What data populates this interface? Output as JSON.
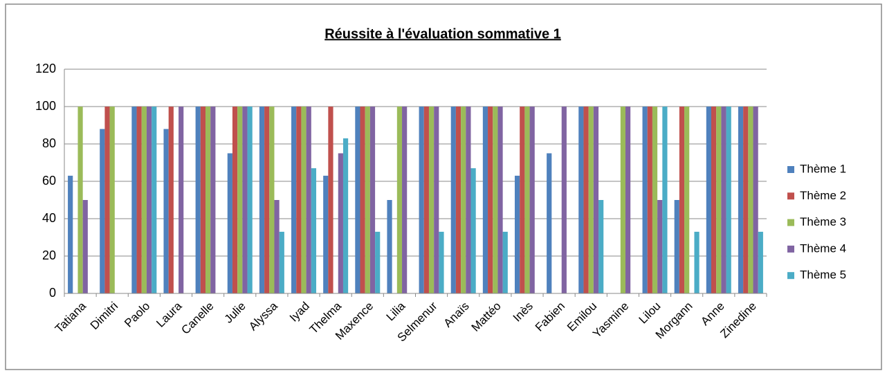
{
  "chart_data": {
    "type": "bar",
    "title": "Réussite à l'évaluation sommative 1",
    "categories": [
      "Tatiana",
      "Dimitri",
      "Paolo",
      "Laura",
      "Canelle",
      "Julie",
      "Alyssa",
      "Iyad",
      "Thelma",
      "Maxence",
      "Lilia",
      "Selmenur",
      "Anaïs",
      "Mattéo",
      "Inès",
      "Fabien",
      "Emilou",
      "Yasmine",
      "Lilou",
      "Morgann",
      "Anne",
      "Zinedine"
    ],
    "series": [
      {
        "name": "Thème 1",
        "color": "#4f81bd",
        "values": [
          63,
          88,
          100,
          88,
          100,
          75,
          100,
          100,
          63,
          100,
          50,
          100,
          100,
          100,
          63,
          75,
          100,
          0,
          100,
          50,
          100,
          100
        ]
      },
      {
        "name": "Thème 2",
        "color": "#c0504d",
        "values": [
          0,
          100,
          100,
          100,
          100,
          100,
          100,
          100,
          100,
          100,
          0,
          100,
          100,
          100,
          100,
          0,
          100,
          0,
          100,
          100,
          100,
          100
        ]
      },
      {
        "name": "Thème 3",
        "color": "#9bbb59",
        "values": [
          100,
          100,
          100,
          0,
          100,
          100,
          100,
          100,
          0,
          100,
          100,
          100,
          100,
          100,
          100,
          0,
          100,
          100,
          100,
          100,
          100,
          100
        ]
      },
      {
        "name": "Thème 4",
        "color": "#8064a2",
        "values": [
          50,
          0,
          100,
          100,
          100,
          100,
          50,
          100,
          75,
          100,
          100,
          100,
          100,
          100,
          100,
          100,
          100,
          100,
          50,
          0,
          100,
          100
        ]
      },
      {
        "name": "Thème 5",
        "color": "#4bacc6",
        "values": [
          0,
          0,
          100,
          0,
          0,
          100,
          33,
          67,
          83,
          33,
          0,
          33,
          67,
          33,
          0,
          0,
          50,
          0,
          100,
          33,
          100,
          33
        ]
      }
    ],
    "ylim": [
      0,
      120
    ],
    "yticks": [
      0,
      20,
      40,
      60,
      80,
      100,
      120
    ],
    "grid": true,
    "legend": "right"
  }
}
